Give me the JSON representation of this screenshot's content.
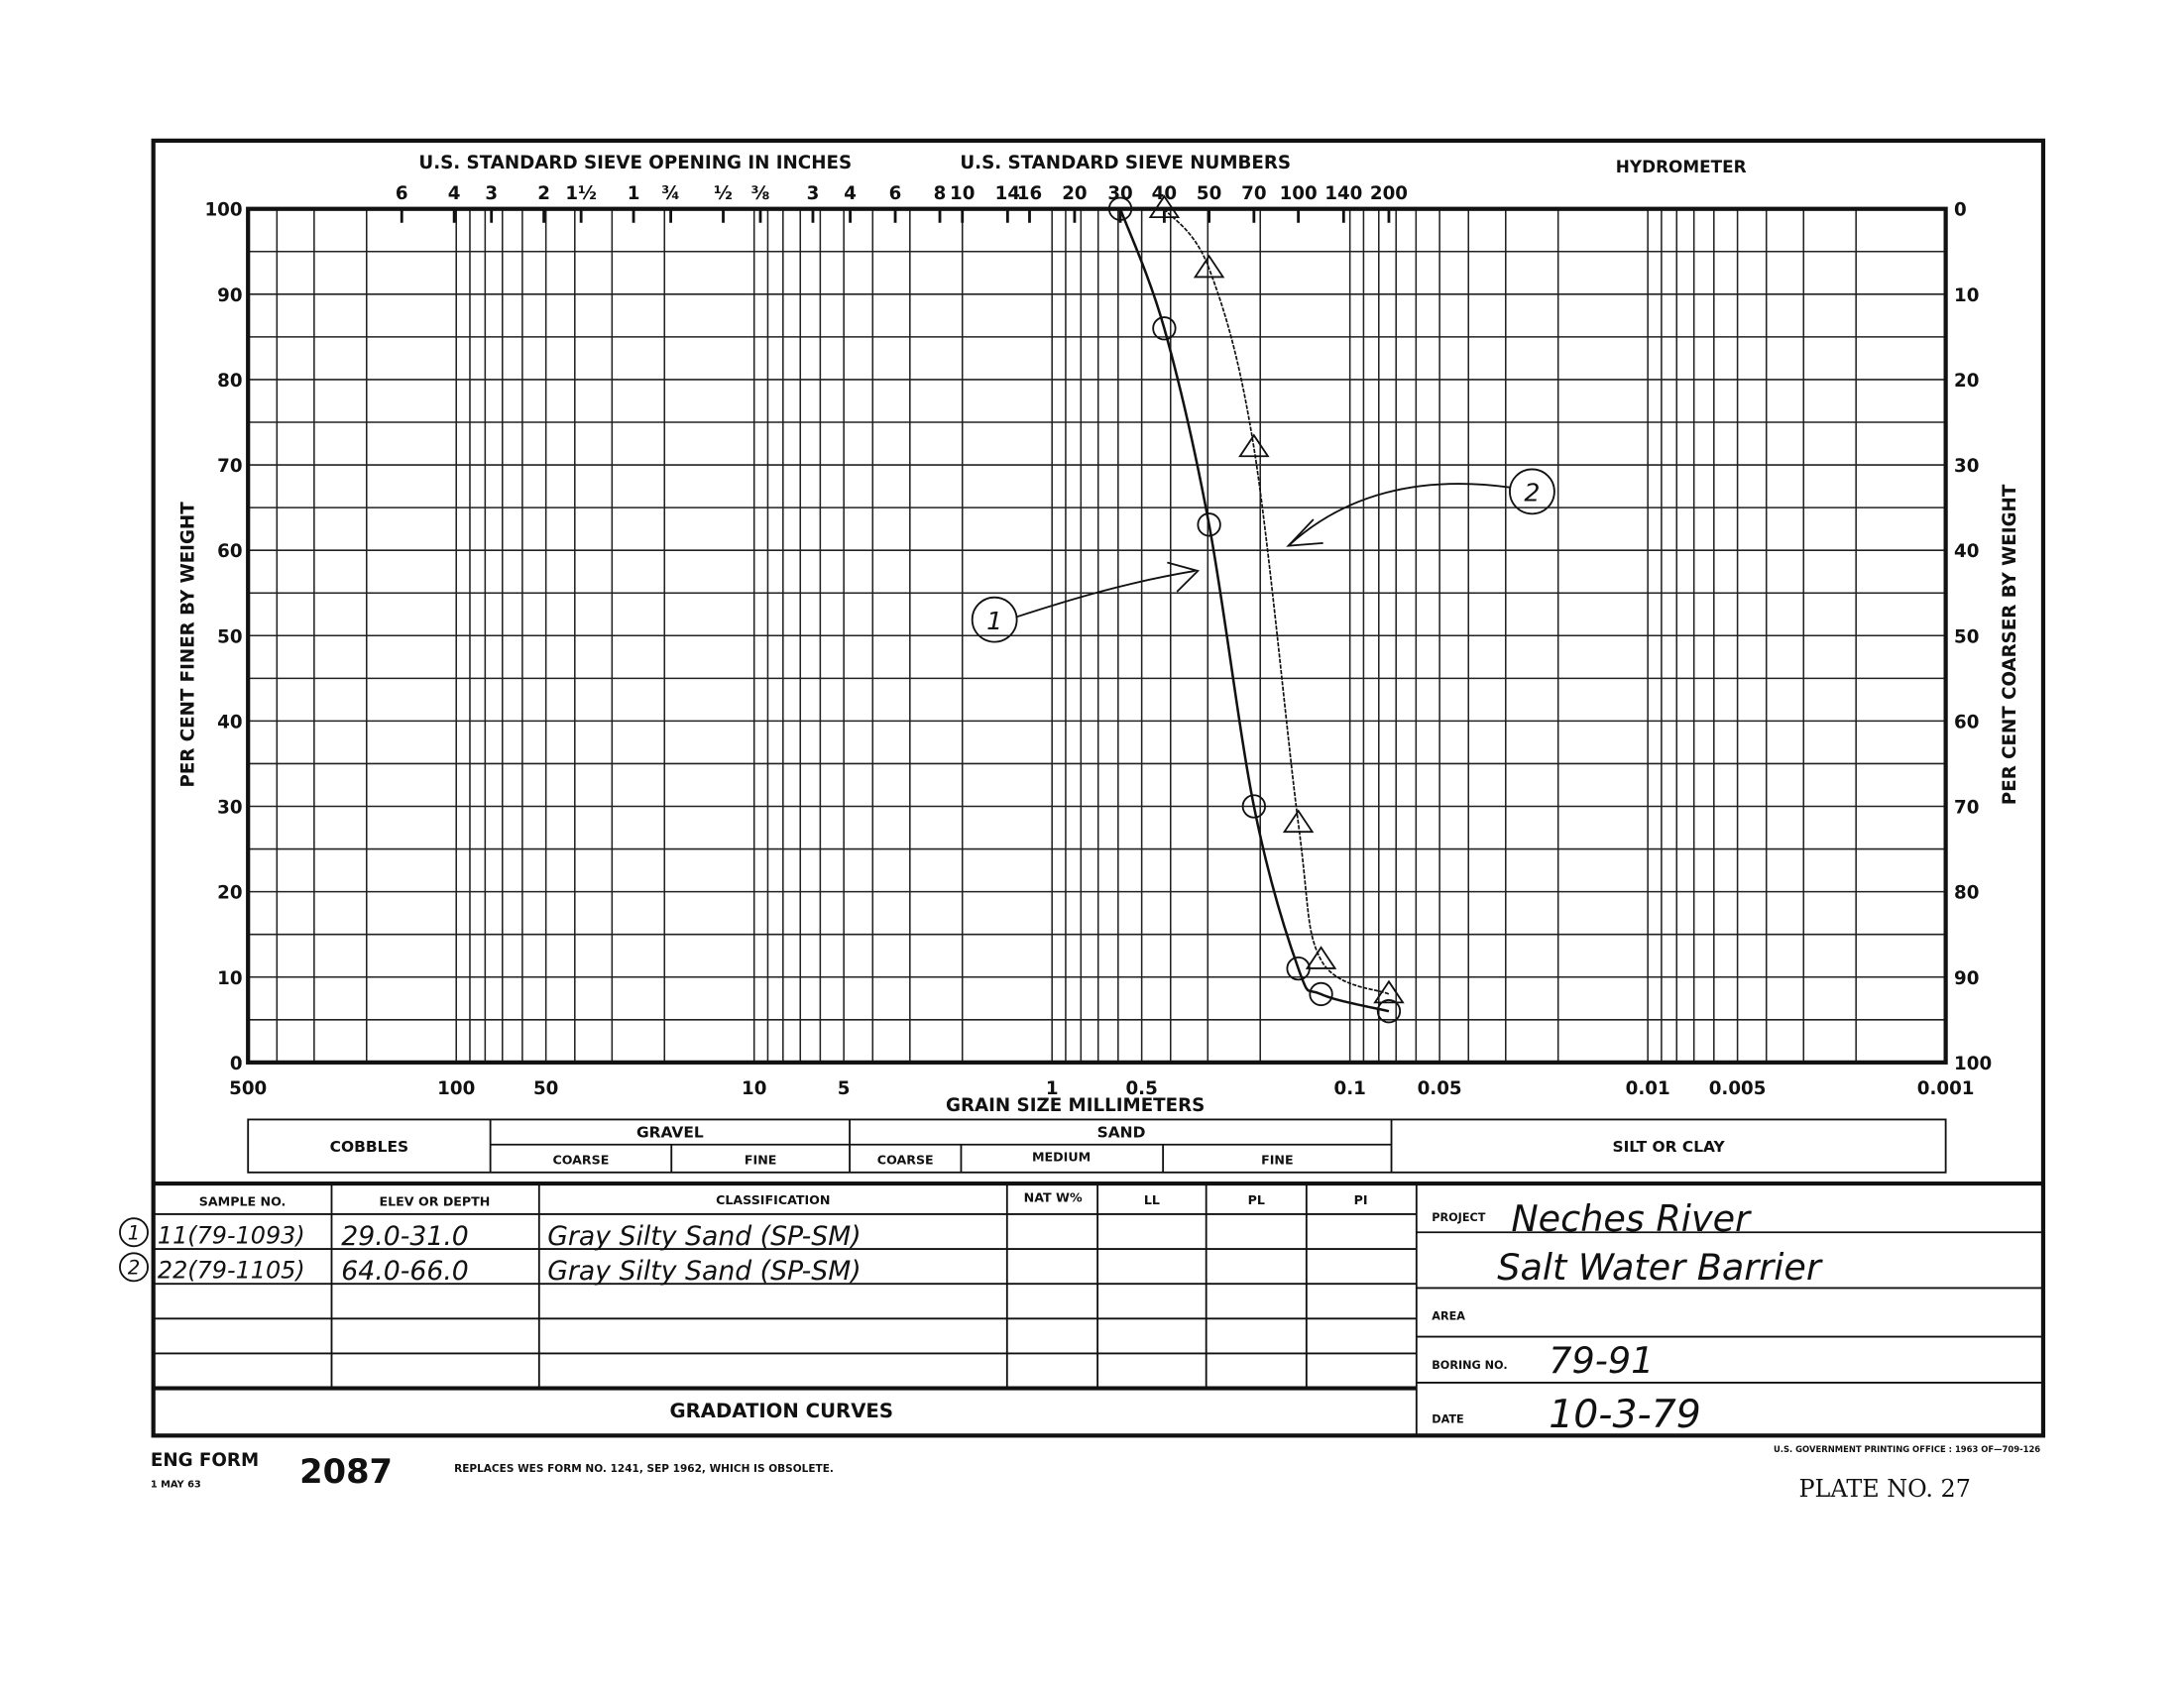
{
  "header": {
    "sieve_inches_title": "U.S. STANDARD SIEVE OPENING IN INCHES",
    "sieve_numbers_title": "U.S. STANDARD SIEVE NUMBERS",
    "hydrometer_title": "HYDROMETER"
  },
  "chart_data": {
    "type": "line",
    "title": "GRADATION CURVES",
    "xlabel": "GRAIN SIZE MILLIMETERS",
    "ylabel": "PER CENT FINER BY WEIGHT",
    "ylabel_right": "PER CENT COARSER BY WEIGHT",
    "xscale": "log",
    "xlim": [
      500,
      0.001
    ],
    "ylim": [
      0,
      100
    ],
    "grid": true,
    "x_ticks": [
      "500",
      "100",
      "50",
      "10",
      "5",
      "1",
      "0.5",
      "0.1",
      "0.05",
      "0.01",
      "0.005",
      "0.001"
    ],
    "x_tick_values": [
      500,
      100,
      50,
      10,
      5,
      1,
      0.5,
      0.1,
      0.05,
      0.01,
      0.005,
      0.001
    ],
    "y_ticks": [
      "0",
      "10",
      "20",
      "30",
      "40",
      "50",
      "60",
      "70",
      "80",
      "90",
      "100"
    ],
    "y_right_ticks": [
      "100",
      "90",
      "80",
      "70",
      "60",
      "50",
      "40",
      "30",
      "20",
      "10",
      "0"
    ],
    "sieves_inches": [
      {
        "label": "6",
        "mm": 152.4
      },
      {
        "label": "4",
        "mm": 101.6
      },
      {
        "label": "3",
        "mm": 76.2
      },
      {
        "label": "2",
        "mm": 50.8
      },
      {
        "label": "1½",
        "mm": 38.1
      },
      {
        "label": "1",
        "mm": 25.4
      },
      {
        "label": "¾",
        "mm": 19.05
      },
      {
        "label": "½",
        "mm": 12.7
      },
      {
        "label": "⅜",
        "mm": 9.53
      }
    ],
    "sieves_numbers": [
      {
        "label": "3",
        "mm": 6.35
      },
      {
        "label": "4",
        "mm": 4.76
      },
      {
        "label": "6",
        "mm": 3.36
      },
      {
        "label": "8",
        "mm": 2.38
      },
      {
        "label": "10",
        "mm": 2.0
      },
      {
        "label": "14",
        "mm": 1.41
      },
      {
        "label": "16",
        "mm": 1.19
      },
      {
        "label": "20",
        "mm": 0.84
      },
      {
        "label": "30",
        "mm": 0.59
      },
      {
        "label": "40",
        "mm": 0.42
      },
      {
        "label": "50",
        "mm": 0.297
      },
      {
        "label": "70",
        "mm": 0.21
      },
      {
        "label": "100",
        "mm": 0.149
      },
      {
        "label": "140",
        "mm": 0.105
      },
      {
        "label": "200",
        "mm": 0.074
      }
    ],
    "series": [
      {
        "name": "1",
        "marker": "circle",
        "x": [
          0.59,
          0.42,
          0.297,
          0.21,
          0.149,
          0.125,
          0.074
        ],
        "y": [
          100,
          86,
          63,
          30,
          11,
          8,
          6
        ]
      },
      {
        "name": "2",
        "marker": "triangle",
        "x": [
          0.42,
          0.297,
          0.21,
          0.149,
          0.125,
          0.074
        ],
        "y": [
          100,
          93,
          72,
          28,
          12,
          8
        ]
      }
    ]
  },
  "classification_bar": {
    "cobbles": "COBBLES",
    "gravel": "GRAVEL",
    "sand": "SAND",
    "silt_clay": "SILT OR CLAY",
    "coarse": "COARSE",
    "fine": "FINE",
    "medium": "MEDIUM"
  },
  "sample_table": {
    "headers": [
      "SAMPLE NO.",
      "ELEV OR DEPTH",
      "CLASSIFICATION",
      "NAT W%",
      "LL",
      "PL",
      "PI"
    ],
    "rows": [
      {
        "marker": "1",
        "sample": "11(79-1093)",
        "depth": "29.0-31.0",
        "classification": "Gray Silty Sand (SP-SM)"
      },
      {
        "marker": "2",
        "sample": "22(79-1105)",
        "depth": "64.0-66.0",
        "classification": "Gray Silty Sand (SP-SM)"
      }
    ],
    "footer_title": "GRADATION CURVES"
  },
  "info_panel": {
    "project_label": "PROJECT",
    "project_line1": "Neches River",
    "project_line2": "Salt Water Barrier",
    "area_label": "AREA",
    "boring_label": "BORING NO.",
    "boring_value": "79-91",
    "date_label": "DATE",
    "date_value": "10-3-79"
  },
  "footer": {
    "form_label": "ENG FORM",
    "form_number": "2087",
    "form_date": "1 MAY 63",
    "replaces": "REPLACES WES FORM NO. 1241, SEP 1962, WHICH IS OBSOLETE.",
    "printing": "U.S. GOVERNMENT PRINTING OFFICE : 1963 OF—709-126",
    "plate": "PLATE NO. 27"
  }
}
